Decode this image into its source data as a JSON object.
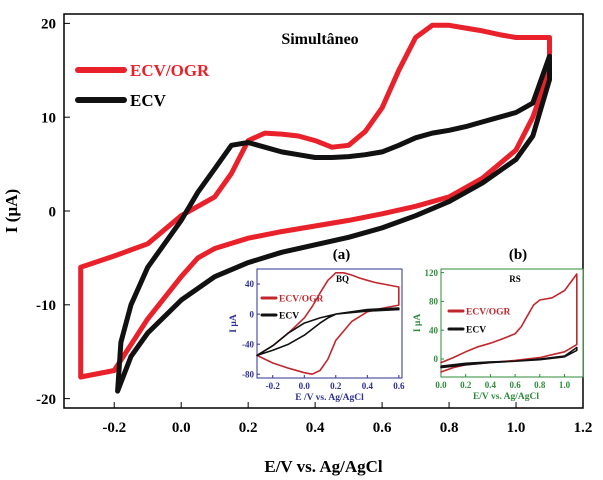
{
  "chart_data": [
    {
      "id": "main",
      "type": "line",
      "title": "Simultâneo",
      "xlabel": "E/V vs. Ag/AgCl",
      "ylabel": "I (µA)",
      "xlim": [
        -0.35,
        1.2
      ],
      "ylim": [
        -21,
        21
      ],
      "xticks": [
        -0.2,
        0.0,
        0.2,
        0.4,
        0.6,
        0.8,
        1.0,
        1.2
      ],
      "xtick_labels": [
        "-0.2",
        "0.0",
        "0.2",
        "0.4",
        "0.6",
        "0.8",
        "1.0",
        "1.2"
      ],
      "yticks": [
        -20,
        -10,
        0,
        10,
        20
      ],
      "ytick_labels": [
        "-20",
        "-10",
        "0",
        "10",
        "20"
      ],
      "legend_position": "top-left",
      "grid": false,
      "series": [
        {
          "name": "ECV/OGR",
          "color": "#e8212b",
          "x": [
            -0.3,
            -0.2,
            -0.1,
            0.0,
            0.05,
            0.1,
            0.15,
            0.2,
            0.25,
            0.3,
            0.35,
            0.4,
            0.45,
            0.5,
            0.55,
            0.6,
            0.65,
            0.7,
            0.75,
            0.8,
            0.85,
            0.9,
            0.95,
            1.0,
            1.05,
            1.1,
            1.1,
            1.05,
            1.0,
            0.9,
            0.8,
            0.7,
            0.6,
            0.5,
            0.4,
            0.3,
            0.2,
            0.1,
            0.05,
            0.0,
            -0.1,
            -0.2,
            -0.3,
            -0.3
          ],
          "y": [
            -6.0,
            -4.8,
            -3.5,
            -0.5,
            0.5,
            1.5,
            4.0,
            7.5,
            8.3,
            8.2,
            8.0,
            7.5,
            6.8,
            7.0,
            8.5,
            11.0,
            15.0,
            18.5,
            19.8,
            19.8,
            19.5,
            19.2,
            18.8,
            18.5,
            18.5,
            18.5,
            15.0,
            10.0,
            6.5,
            3.5,
            1.5,
            0.5,
            -0.3,
            -1.0,
            -1.6,
            -2.2,
            -2.9,
            -4.0,
            -5.0,
            -7.0,
            -11.5,
            -17.0,
            -17.7,
            -6.0
          ]
        },
        {
          "name": "ECV",
          "color": "#111111",
          "x": [
            -0.19,
            -0.18,
            -0.15,
            -0.1,
            -0.05,
            0.0,
            0.05,
            0.1,
            0.15,
            0.2,
            0.25,
            0.3,
            0.35,
            0.4,
            0.45,
            0.5,
            0.55,
            0.6,
            0.65,
            0.7,
            0.75,
            0.8,
            0.85,
            0.9,
            0.95,
            1.0,
            1.05,
            1.1,
            1.1,
            1.05,
            1.0,
            0.9,
            0.8,
            0.7,
            0.6,
            0.5,
            0.4,
            0.3,
            0.2,
            0.1,
            0.0,
            -0.1,
            -0.15,
            -0.19
          ],
          "y": [
            -19.2,
            -14.0,
            -10.0,
            -6.0,
            -3.5,
            -1.0,
            2.0,
            4.5,
            7.0,
            7.3,
            6.8,
            6.3,
            6.0,
            5.7,
            5.7,
            5.8,
            6.0,
            6.3,
            7.0,
            7.8,
            8.3,
            8.6,
            9.0,
            9.5,
            10.0,
            10.5,
            11.5,
            16.5,
            14.0,
            8.0,
            5.5,
            3.0,
            1.0,
            -0.5,
            -1.8,
            -2.8,
            -3.6,
            -4.4,
            -5.5,
            -7.0,
            -9.5,
            -13.0,
            -15.5,
            -19.2
          ]
        }
      ]
    },
    {
      "id": "inset-a",
      "type": "line",
      "panel_label": "(a)",
      "title": "BQ",
      "xlabel": "E /V vs. Ag/AgCl",
      "ylabel": "I µA",
      "xlim": [
        -0.3,
        0.62
      ],
      "ylim": [
        -85,
        60
      ],
      "xticks": [
        -0.2,
        0.0,
        0.2,
        0.4,
        0.6
      ],
      "xtick_labels": [
        "-0.2",
        "0.0",
        "0.2",
        "0.4",
        "0.6"
      ],
      "yticks": [
        -80,
        -40,
        0,
        40
      ],
      "ytick_labels": [
        "-80",
        "-40",
        "0",
        "40"
      ],
      "axis_color": "#2e3192",
      "legend_position": "top-right",
      "series": [
        {
          "name": "ECV/OGR",
          "color": "#c1272d",
          "x": [
            -0.3,
            -0.2,
            -0.1,
            0.0,
            0.05,
            0.1,
            0.15,
            0.2,
            0.25,
            0.3,
            0.35,
            0.4,
            0.45,
            0.5,
            0.55,
            0.6,
            0.6,
            0.5,
            0.4,
            0.3,
            0.2,
            0.15,
            0.1,
            0.05,
            0.0,
            -0.1,
            -0.2,
            -0.3
          ],
          "y": [
            -55,
            -42,
            -25,
            -5,
            10,
            28,
            45,
            55,
            55,
            52,
            48,
            45,
            42,
            40,
            38,
            36,
            12,
            8,
            3,
            -10,
            -35,
            -60,
            -75,
            -80,
            -78,
            -72,
            -65,
            -55
          ]
        },
        {
          "name": "ECV",
          "color": "#111111",
          "x": [
            -0.3,
            -0.2,
            -0.1,
            0.0,
            0.1,
            0.15,
            0.2,
            0.3,
            0.4,
            0.5,
            0.6,
            0.6,
            0.4,
            0.2,
            0.1,
            0.0,
            -0.1,
            -0.2,
            -0.3
          ],
          "y": [
            -55,
            -48,
            -40,
            -28,
            -12,
            -5,
            0,
            3,
            6,
            7,
            8,
            6,
            4,
            0,
            -5,
            -12,
            -25,
            -42,
            -55
          ]
        }
      ]
    },
    {
      "id": "inset-b",
      "type": "line",
      "panel_label": "(b)",
      "title": "RS",
      "xlabel": "E/V vs. Ag/AgCl",
      "ylabel": "I µA",
      "xlim": [
        0.0,
        1.15
      ],
      "ylim": [
        -25,
        125
      ],
      "xticks": [
        0.0,
        0.2,
        0.4,
        0.6,
        0.8,
        1.0
      ],
      "xtick_labels": [
        "0.0",
        "0.2",
        "0.4",
        "0.6",
        "0.8",
        "1.0"
      ],
      "yticks": [
        0,
        40,
        80,
        120
      ],
      "ytick_labels": [
        "0",
        "40",
        "80",
        "120"
      ],
      "axis_color": "#2e8b3a",
      "legend_position": "center-left",
      "series": [
        {
          "name": "ECV/OGR",
          "color": "#c1272d",
          "x": [
            0.0,
            0.1,
            0.2,
            0.3,
            0.4,
            0.5,
            0.6,
            0.65,
            0.7,
            0.75,
            0.8,
            0.9,
            1.0,
            1.1,
            1.1,
            1.0,
            0.9,
            0.8,
            0.6,
            0.4,
            0.2,
            0.1,
            0.0
          ],
          "y": [
            -5,
            2,
            10,
            17,
            22,
            28,
            35,
            45,
            60,
            75,
            82,
            85,
            95,
            118,
            20,
            10,
            6,
            2,
            -2,
            -5,
            -8,
            -12,
            -18
          ]
        },
        {
          "name": "ECV",
          "color": "#111111",
          "x": [
            0.0,
            0.2,
            0.4,
            0.6,
            0.8,
            1.0,
            1.1,
            1.1,
            1.0,
            0.8,
            0.6,
            0.4,
            0.2,
            0.0
          ],
          "y": [
            -10,
            -6,
            -4,
            -3,
            0,
            4,
            16,
            12,
            3,
            -1,
            -3,
            -5,
            -8,
            -12
          ]
        }
      ]
    }
  ]
}
